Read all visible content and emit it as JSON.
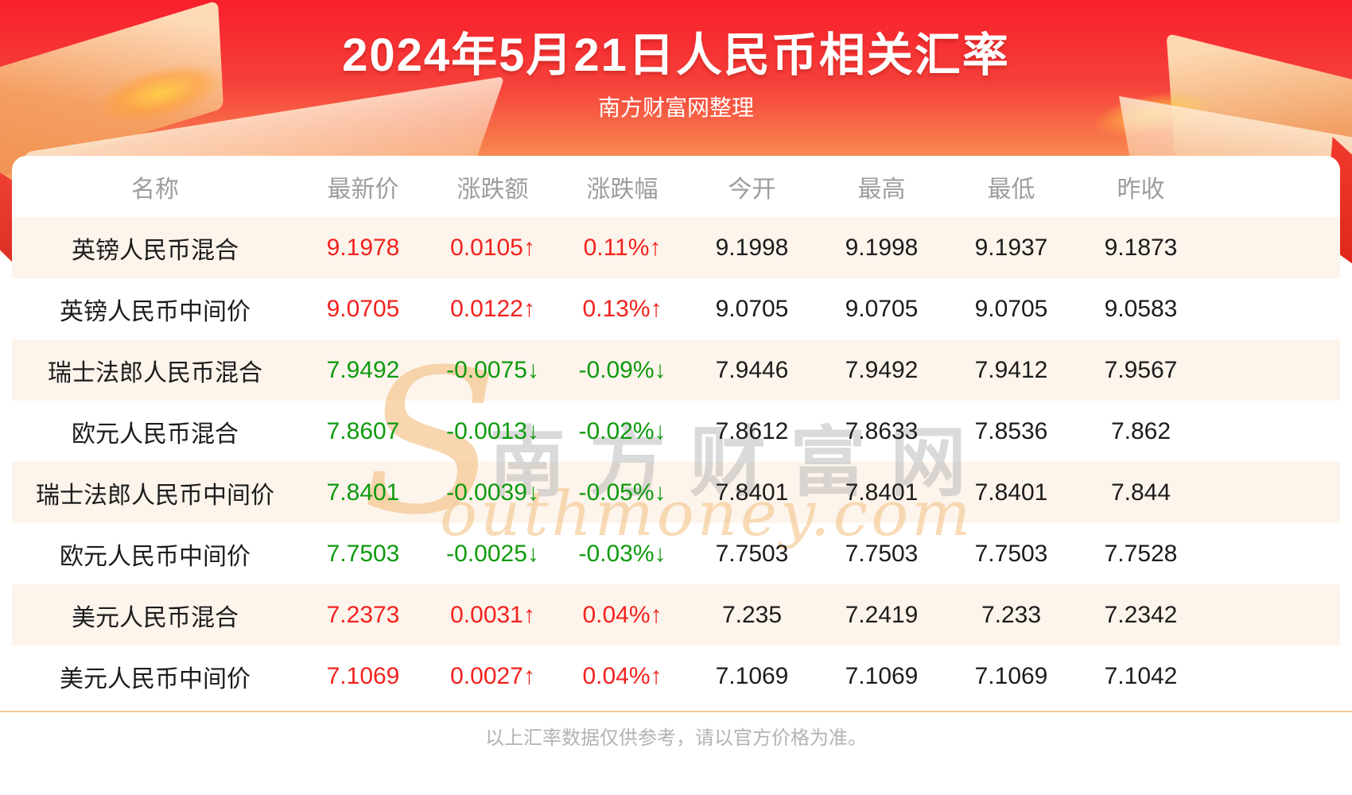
{
  "header": {
    "subtitle": "南方财富网整理"
  },
  "chart_data": {
    "type": "table",
    "title": "2024年5月21日人民币相关汇率",
    "columns": [
      "名称",
      "最新价",
      "涨跌额",
      "涨跌幅",
      "今开",
      "最高",
      "最低",
      "昨收"
    ],
    "rows": [
      {
        "name": "英镑人民币混合",
        "latest": "9.1978",
        "change": "0.0105↑",
        "change_pct": "0.11%↑",
        "open": "9.1998",
        "high": "9.1998",
        "low": "9.1937",
        "prev_close": "9.1873",
        "direction": "up"
      },
      {
        "name": "英镑人民币中间价",
        "latest": "9.0705",
        "change": "0.0122↑",
        "change_pct": "0.13%↑",
        "open": "9.0705",
        "high": "9.0705",
        "low": "9.0705",
        "prev_close": "9.0583",
        "direction": "up"
      },
      {
        "name": "瑞士法郎人民币混合",
        "latest": "7.9492",
        "change": "-0.0075↓",
        "change_pct": "-0.09%↓",
        "open": "7.9446",
        "high": "7.9492",
        "low": "7.9412",
        "prev_close": "7.9567",
        "direction": "down"
      },
      {
        "name": "欧元人民币混合",
        "latest": "7.8607",
        "change": "-0.0013↓",
        "change_pct": "-0.02%↓",
        "open": "7.8612",
        "high": "7.8633",
        "low": "7.8536",
        "prev_close": "7.862",
        "direction": "down"
      },
      {
        "name": "瑞士法郎人民币中间价",
        "latest": "7.8401",
        "change": "-0.0039↓",
        "change_pct": "-0.05%↓",
        "open": "7.8401",
        "high": "7.8401",
        "low": "7.8401",
        "prev_close": "7.844",
        "direction": "down"
      },
      {
        "name": "欧元人民币中间价",
        "latest": "7.7503",
        "change": "-0.0025↓",
        "change_pct": "-0.03%↓",
        "open": "7.7503",
        "high": "7.7503",
        "low": "7.7503",
        "prev_close": "7.7528",
        "direction": "down"
      },
      {
        "name": "美元人民币混合",
        "latest": "7.2373",
        "change": "0.0031↑",
        "change_pct": "0.04%↑",
        "open": "7.235",
        "high": "7.2419",
        "low": "7.233",
        "prev_close": "7.2342",
        "direction": "up"
      },
      {
        "name": "美元人民币中间价",
        "latest": "7.1069",
        "change": "0.0027↑",
        "change_pct": "0.04%↑",
        "open": "7.1069",
        "high": "7.1069",
        "low": "7.1069",
        "prev_close": "7.1042",
        "direction": "up"
      }
    ]
  },
  "watermark": {
    "s_glyph": "S",
    "cn": "南方财富网",
    "en": "outhmoney.com"
  },
  "footer": {
    "disclaimer": "以上汇率数据仅供参考，请以官方价格为准。"
  },
  "colors": {
    "up_red": "#f3221d",
    "down_green": "#0e9a0e",
    "stripe_bg": "#fdf4ec",
    "divider_tan": "#f3c892",
    "hero_red_top": "#f81f2b",
    "hero_red_mid": "#f6403a",
    "hero_orange_bottom": "#fbb176",
    "header_text_gray": "#9d9d9d",
    "value_text_black": "#1c1c1c",
    "footer_text_gray": "#b3b3b3"
  }
}
